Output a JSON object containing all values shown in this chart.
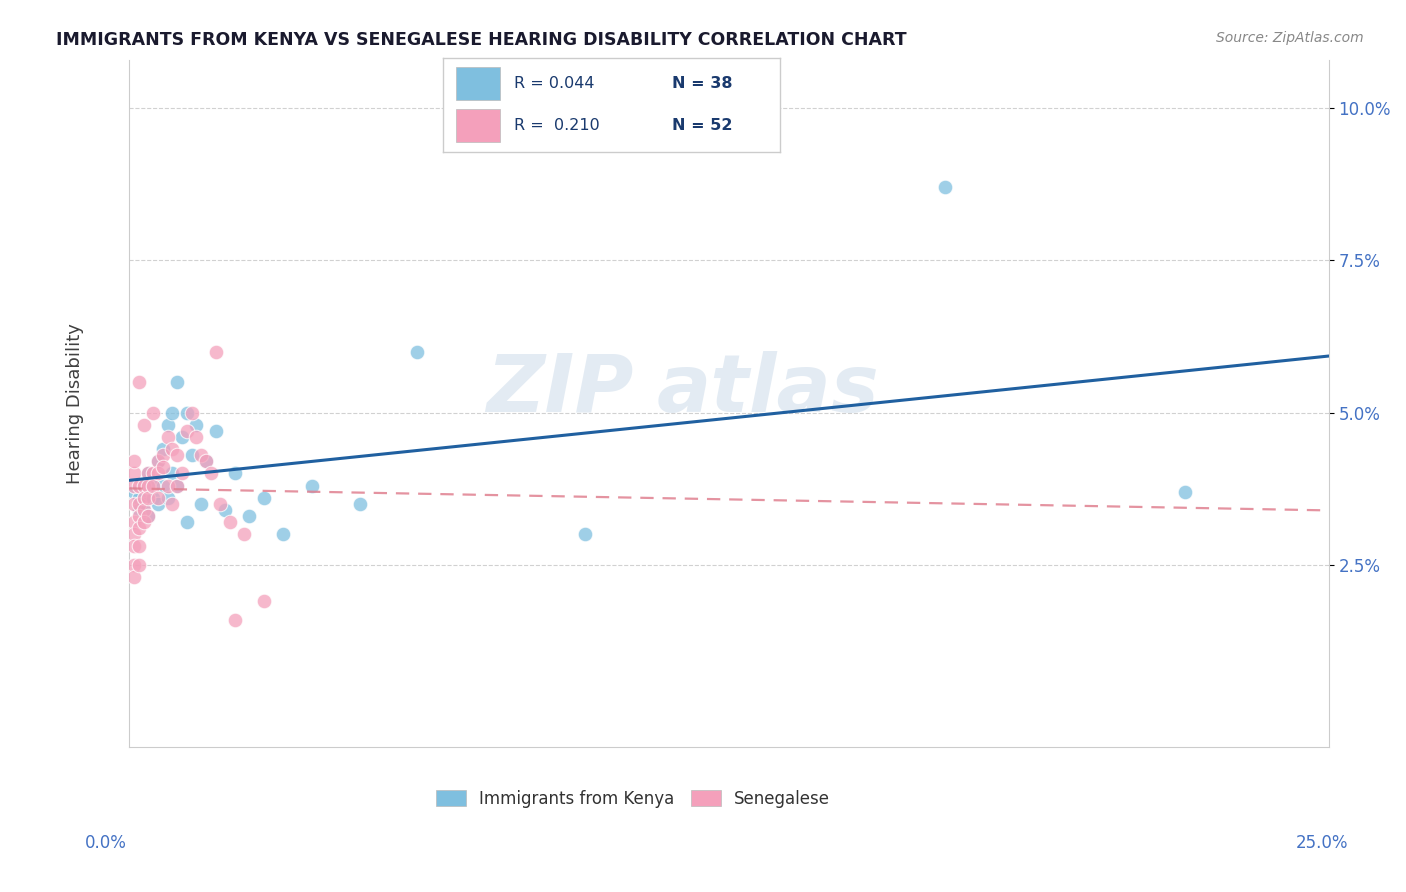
{
  "title": "IMMIGRANTS FROM KENYA VS SENEGALESE HEARING DISABILITY CORRELATION CHART",
  "source": "Source: ZipAtlas.com",
  "ylabel": "Hearing Disability",
  "xlim": [
    0.0,
    0.25
  ],
  "ylim": [
    -0.005,
    0.108
  ],
  "yticks": [
    0.025,
    0.05,
    0.075,
    0.1
  ],
  "ytick_labels": [
    "2.5%",
    "5.0%",
    "7.5%",
    "10.0%"
  ],
  "legend_r1": "R = 0.044",
  "legend_n1": "N = 38",
  "legend_r2": "R =  0.210",
  "legend_n2": "N = 52",
  "blue_color": "#7fbfdf",
  "pink_color": "#f4a0bb",
  "blue_line_color": "#2060a0",
  "pink_line_color": "#e08090",
  "watermark_zip": "ZIP",
  "watermark_atlas": "atlas",
  "blue_scatter_x": [
    0.001,
    0.002,
    0.002,
    0.003,
    0.003,
    0.004,
    0.004,
    0.005,
    0.005,
    0.006,
    0.006,
    0.007,
    0.007,
    0.008,
    0.008,
    0.009,
    0.009,
    0.01,
    0.01,
    0.011,
    0.012,
    0.013,
    0.014,
    0.015,
    0.016,
    0.018,
    0.02,
    0.022,
    0.025,
    0.028,
    0.032,
    0.038,
    0.06,
    0.095,
    0.17,
    0.22,
    0.048,
    0.012
  ],
  "blue_scatter_y": [
    0.037,
    0.036,
    0.034,
    0.038,
    0.035,
    0.04,
    0.033,
    0.036,
    0.039,
    0.042,
    0.035,
    0.044,
    0.038,
    0.048,
    0.036,
    0.05,
    0.04,
    0.055,
    0.038,
    0.046,
    0.05,
    0.043,
    0.048,
    0.035,
    0.042,
    0.047,
    0.034,
    0.04,
    0.033,
    0.036,
    0.03,
    0.038,
    0.06,
    0.03,
    0.087,
    0.037,
    0.035,
    0.032
  ],
  "pink_scatter_x": [
    0.001,
    0.001,
    0.001,
    0.001,
    0.001,
    0.001,
    0.001,
    0.001,
    0.001,
    0.002,
    0.002,
    0.002,
    0.002,
    0.002,
    0.002,
    0.002,
    0.003,
    0.003,
    0.003,
    0.003,
    0.003,
    0.004,
    0.004,
    0.004,
    0.004,
    0.005,
    0.005,
    0.005,
    0.006,
    0.006,
    0.006,
    0.007,
    0.007,
    0.008,
    0.008,
    0.009,
    0.009,
    0.01,
    0.01,
    0.011,
    0.012,
    0.013,
    0.014,
    0.015,
    0.016,
    0.017,
    0.019,
    0.021,
    0.024,
    0.028,
    0.018,
    0.022
  ],
  "pink_scatter_y": [
    0.035,
    0.032,
    0.03,
    0.028,
    0.025,
    0.023,
    0.038,
    0.04,
    0.042,
    0.038,
    0.035,
    0.033,
    0.031,
    0.028,
    0.025,
    0.055,
    0.038,
    0.036,
    0.034,
    0.032,
    0.048,
    0.04,
    0.038,
    0.036,
    0.033,
    0.04,
    0.038,
    0.05,
    0.042,
    0.04,
    0.036,
    0.043,
    0.041,
    0.046,
    0.038,
    0.044,
    0.035,
    0.043,
    0.038,
    0.04,
    0.047,
    0.05,
    0.046,
    0.043,
    0.042,
    0.04,
    0.035,
    0.032,
    0.03,
    0.019,
    0.06,
    0.016
  ]
}
